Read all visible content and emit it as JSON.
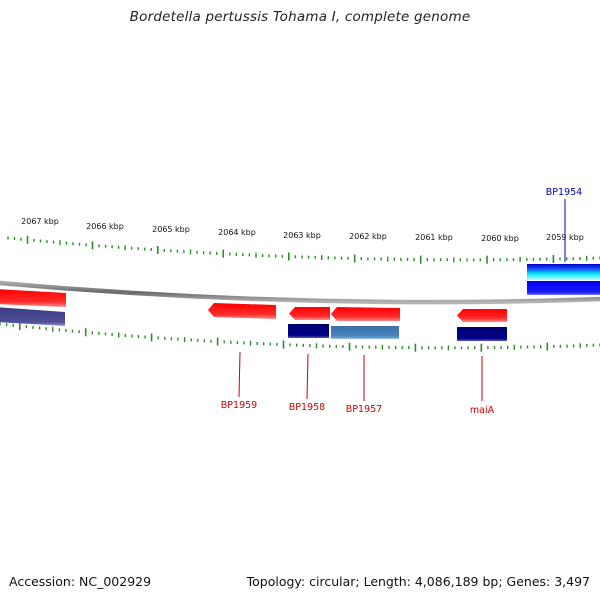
{
  "title": "Bordetella pertussis Tohama I, complete genome",
  "footer": {
    "accession": "Accession: NC_002929",
    "topology": "Topology: circular; Length: 4,086,189 bp; Genes: 3,497"
  },
  "ruler_labels": [
    "2067 kbp",
    "2066 kbp",
    "2065 kbp",
    "2064 kbp",
    "2063 kbp",
    "2062 kbp",
    "2061 kbp",
    "2060 kbp",
    "2059 kbp"
  ],
  "gene_labels": [
    {
      "text": "BP1954",
      "color": "#0000aa"
    },
    {
      "text": "BP1959",
      "color": "#cc0000"
    },
    {
      "text": "BP1958",
      "color": "#cc0000"
    },
    {
      "text": "BP1957",
      "color": "#cc0000"
    },
    {
      "text": "maiA",
      "color": "#cc0000"
    }
  ],
  "colors": {
    "tick": "#2e8b2e",
    "backbone": "#7a7a7a",
    "gene_red": "#ff1a1a",
    "gene_navy": "#000080",
    "gene_blue": "#1a1aff",
    "gene_steel": "#4682b4",
    "gene_slate": "#4b4b8c",
    "gene_cyan": "#00e5ee"
  }
}
